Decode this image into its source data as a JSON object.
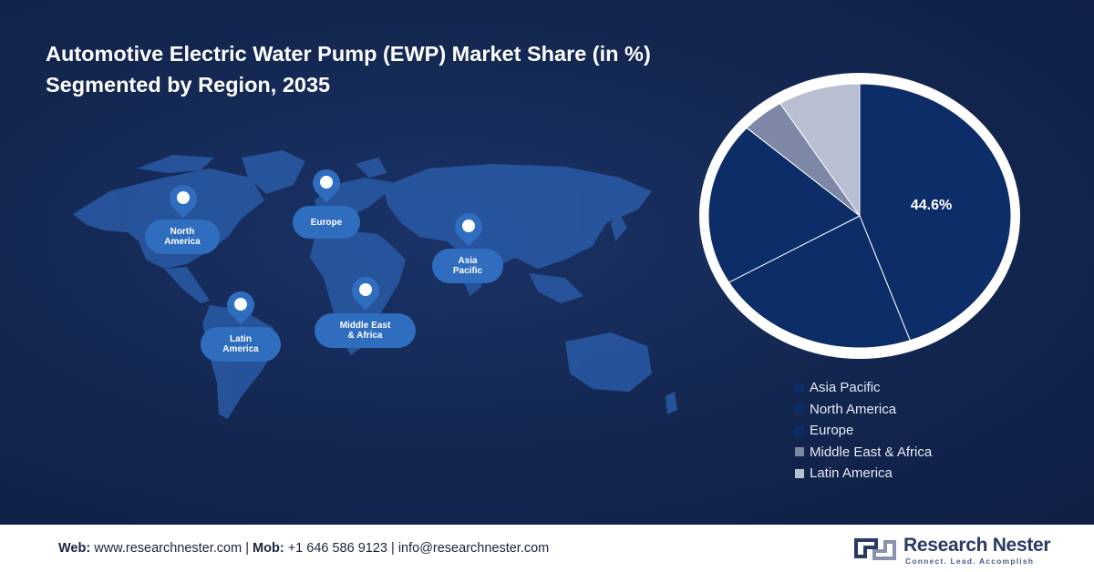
{
  "title": {
    "line1": "Automotive Electric Water Pump (EWP) Market Share (in %)",
    "line2": "Segmented by Region, 2035"
  },
  "map_labels": {
    "north_america": "North\nAmerica",
    "europe": "Europe",
    "asia_pacific": "Asia\nPacific",
    "middle_east_africa": "Middle East\n& Africa",
    "latin_america": "Latin\nAmerica"
  },
  "chart_data": {
    "type": "pie",
    "categories": [
      "Asia Pacific",
      "North America",
      "Europe",
      "Middle East & Africa",
      "Latin America"
    ],
    "values": [
      44.6,
      22.0,
      20.0,
      4.6,
      8.8
    ],
    "colors": [
      "#0c2d68",
      "#0c2d68",
      "#0c2d68",
      "#7d88a6",
      "#b9bfd2"
    ],
    "data_labels": [
      "44.6%",
      "",
      "",
      "",
      ""
    ],
    "legend_position": "bottom-right",
    "start_angle_deg": 0,
    "direction": "clockwise"
  },
  "footer": {
    "web_label": "Web:",
    "web_value": "www.researchnester.com",
    "mob_label": "Mob:",
    "mob_value": "+1 646 586 9123",
    "email": "info@researchnester.com",
    "separator": "|",
    "logo_name": "Research Nester",
    "logo_tagline": "Connect. Lead. Accomplish"
  },
  "colors": {
    "background": "#13264f",
    "accent": "#2f6dbf",
    "pie_dark": "#0c2d68"
  }
}
